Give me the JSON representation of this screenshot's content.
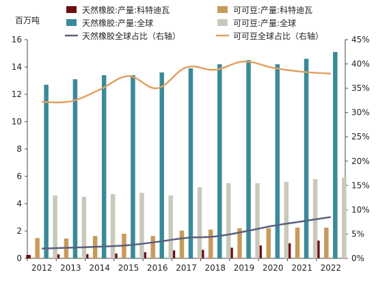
{
  "chart_data": {
    "type": "bar",
    "ylabel": "百万吨",
    "categories": [
      "2012",
      "2013",
      "2014",
      "2015",
      "2016",
      "2017",
      "2018",
      "2019",
      "2020",
      "2021",
      "2022"
    ],
    "ylim": [
      0,
      16
    ],
    "yticks": [
      "0",
      "2",
      "4",
      "6",
      "8",
      "10",
      "12",
      "14",
      "16"
    ],
    "y2lim": [
      0,
      45
    ],
    "y2ticks": [
      "0%",
      "5%",
      "10%",
      "15%",
      "20%",
      "25%",
      "30%",
      "35%",
      "40%",
      "45%"
    ],
    "grid": false,
    "legend_position": "top",
    "bar_series": [
      {
        "name": "天然橡胶:产量:科特迪瓦",
        "color": "#6b0f12",
        "values": [
          0.25,
          0.29,
          0.31,
          0.35,
          0.45,
          0.58,
          0.62,
          0.78,
          0.94,
          1.1,
          1.3
        ]
      },
      {
        "name": "可可豆:产量:科特迪瓦",
        "color": "#c89a5a",
        "values": [
          1.48,
          1.45,
          1.63,
          1.8,
          1.63,
          2.03,
          2.1,
          2.2,
          2.2,
          2.25,
          2.25
        ]
      },
      {
        "name": "天然橡胶:产量:全球",
        "color": "#3a8a99",
        "values": [
          12.7,
          13.1,
          13.4,
          13.4,
          13.6,
          13.9,
          14.2,
          14.5,
          14.2,
          14.6,
          15.1
        ]
      },
      {
        "name": "可可豆:产量:全球",
        "color": "#c9c9bb",
        "values": [
          4.6,
          4.5,
          4.7,
          4.8,
          4.6,
          5.2,
          5.5,
          5.5,
          5.6,
          5.8,
          5.9
        ]
      }
    ],
    "line_series": [
      {
        "name": "天然橡胶全球占比（右轴）",
        "color": "#5a5f7e",
        "axis": "right",
        "values": [
          2.0,
          2.2,
          2.4,
          2.7,
          3.4,
          4.2,
          4.5,
          5.5,
          6.7,
          7.6,
          8.5
        ]
      },
      {
        "name": "可可豆全球占比（右轴）",
        "color": "#e0a060",
        "axis": "right",
        "values": [
          32.2,
          32.3,
          34.7,
          37.5,
          35.0,
          39.3,
          38.8,
          40.5,
          39.2,
          38.4,
          38.0
        ]
      }
    ]
  }
}
